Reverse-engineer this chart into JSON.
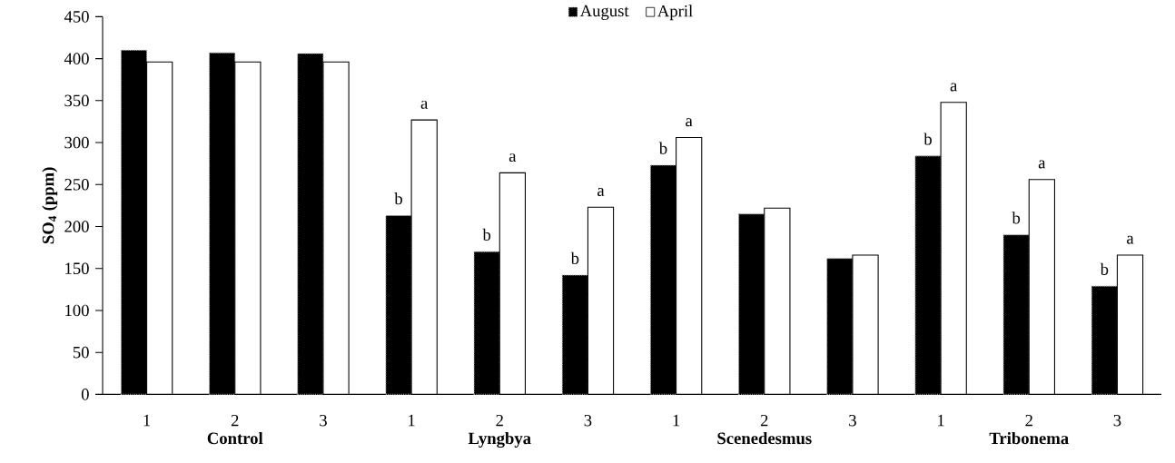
{
  "chart_data": {
    "type": "bar",
    "ylabel": "SO$_{4}$ (ppm)",
    "categories": [
      "1",
      "2",
      "3",
      "1",
      "2",
      "3",
      "1",
      "2",
      "3",
      "1",
      "2",
      "3"
    ],
    "annotations": [
      "Control",
      "Lyngbya",
      "Scenedesmus",
      "Tribonema"
    ],
    "series": [
      {
        "name": "August",
        "color": "#000000",
        "values": [
          410,
          407,
          406,
          213,
          170,
          142,
          273,
          215,
          162,
          284,
          190,
          129
        ],
        "value_labels": [
          null,
          null,
          null,
          "b",
          "b",
          "b",
          "b",
          null,
          null,
          "b",
          "b",
          "b"
        ]
      },
      {
        "name": "April",
        "color": "#ffffff",
        "values": [
          396,
          396,
          396,
          327,
          264,
          223,
          306,
          222,
          166,
          348,
          256,
          166
        ],
        "value_labels": [
          null,
          null,
          null,
          "a",
          "a",
          "a",
          "a",
          null,
          null,
          "a",
          "a",
          "a"
        ]
      }
    ],
    "ylim": [
      0,
      450
    ],
    "yticks": [
      0,
      50,
      100,
      150,
      200,
      250,
      300,
      350,
      400,
      450
    ],
    "legend": "top",
    "grid": false
  }
}
